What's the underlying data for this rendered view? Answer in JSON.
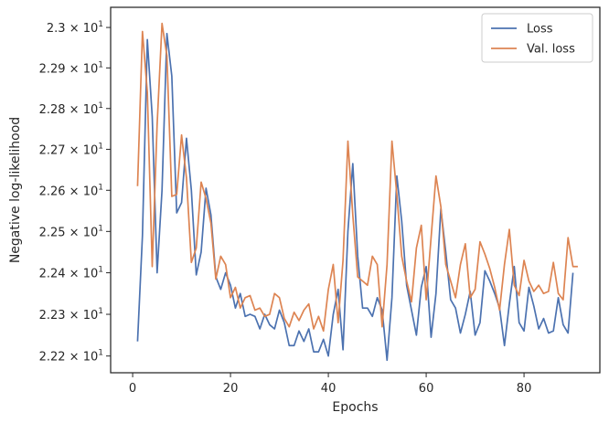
{
  "chart_data": {
    "type": "line",
    "title": "",
    "xlabel": "Epochs",
    "ylabel": "Negative log-likelihood",
    "xlim": [
      -4.5,
      95.5
    ],
    "ylim": [
      22.16,
      23.05
    ],
    "y_scale": "log",
    "grid": false,
    "legend_position": "top-right",
    "x_ticks": [
      0,
      20,
      40,
      60,
      80
    ],
    "y_ticks": [
      {
        "value": 22.2,
        "mantissa": "2.22"
      },
      {
        "value": 22.3,
        "mantissa": "2.23"
      },
      {
        "value": 22.4,
        "mantissa": "2.24"
      },
      {
        "value": 22.5,
        "mantissa": "2.25"
      },
      {
        "value": 22.6,
        "mantissa": "2.26"
      },
      {
        "value": 22.7,
        "mantissa": "2.27"
      },
      {
        "value": 22.8,
        "mantissa": "2.28"
      },
      {
        "value": 22.9,
        "mantissa": "2.29"
      },
      {
        "value": 23.0,
        "mantissa": "2.3"
      }
    ],
    "y_tick_times": "×",
    "y_tick_base": "10",
    "y_tick_exponent": "1",
    "x_start": 1,
    "series": [
      {
        "name": "Loss",
        "color": "#4c72b0",
        "values": [
          22.235,
          22.49,
          22.97,
          22.78,
          22.4,
          22.6,
          22.985,
          22.88,
          22.545,
          22.57,
          22.727,
          22.6,
          22.395,
          22.45,
          22.605,
          22.54,
          22.39,
          22.36,
          22.4,
          22.37,
          22.315,
          22.35,
          22.295,
          22.3,
          22.295,
          22.265,
          22.3,
          22.275,
          22.265,
          22.31,
          22.28,
          22.225,
          22.225,
          22.26,
          22.235,
          22.265,
          22.21,
          22.21,
          22.24,
          22.2,
          22.3,
          22.36,
          22.215,
          22.5,
          22.665,
          22.44,
          22.315,
          22.315,
          22.295,
          22.34,
          22.31,
          22.19,
          22.34,
          22.635,
          22.525,
          22.37,
          22.31,
          22.25,
          22.365,
          22.415,
          22.245,
          22.35,
          22.555,
          22.45,
          22.335,
          22.315,
          22.255,
          22.3,
          22.355,
          22.25,
          22.28,
          22.405,
          22.38,
          22.35,
          22.315,
          22.225,
          22.325,
          22.415,
          22.28,
          22.26,
          22.365,
          22.32,
          22.265,
          22.29,
          22.255,
          22.26,
          22.34,
          22.275,
          22.255,
          22.4
        ]
      },
      {
        "name": "Val. loss",
        "color": "#dd8452",
        "values": [
          22.61,
          22.99,
          22.84,
          22.415,
          22.76,
          23.01,
          22.93,
          22.585,
          22.59,
          22.735,
          22.63,
          22.425,
          22.46,
          22.62,
          22.58,
          22.52,
          22.385,
          22.44,
          22.42,
          22.34,
          22.365,
          22.315,
          22.34,
          22.345,
          22.31,
          22.315,
          22.295,
          22.3,
          22.35,
          22.34,
          22.29,
          22.27,
          22.305,
          22.285,
          22.31,
          22.325,
          22.265,
          22.295,
          22.26,
          22.36,
          22.42,
          22.28,
          22.43,
          22.72,
          22.54,
          22.39,
          22.38,
          22.37,
          22.44,
          22.42,
          22.27,
          22.42,
          22.72,
          22.59,
          22.44,
          22.38,
          22.33,
          22.46,
          22.515,
          22.335,
          22.485,
          22.635,
          22.56,
          22.42,
          22.38,
          22.34,
          22.42,
          22.47,
          22.34,
          22.36,
          22.475,
          22.445,
          22.41,
          22.365,
          22.31,
          22.42,
          22.505,
          22.37,
          22.345,
          22.43,
          22.38,
          22.355,
          22.37,
          22.35,
          22.355,
          22.425,
          22.35,
          22.335,
          22.485,
          22.415,
          22.415
        ]
      }
    ]
  }
}
